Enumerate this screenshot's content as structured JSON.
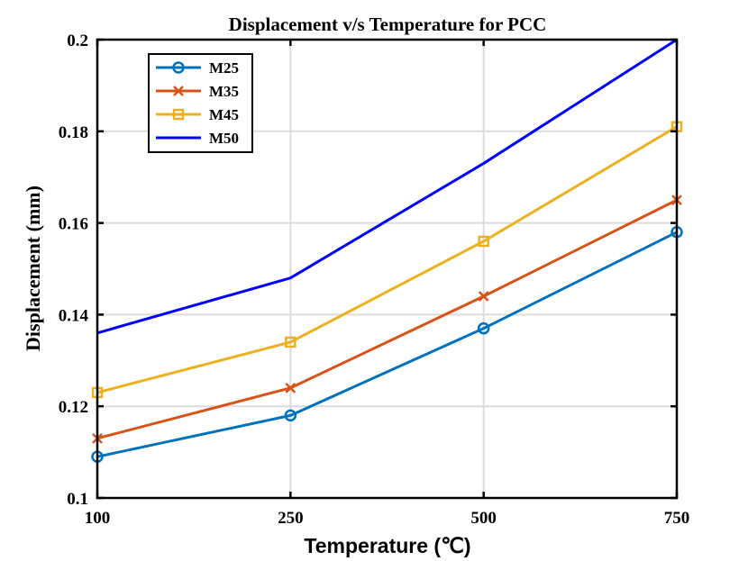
{
  "chart_data": {
    "type": "line",
    "title": "Displacement v/s Temperature for PCC",
    "xlabel": "Temperature (℃)",
    "ylabel": "Displacement (mm)",
    "categories": [
      "100",
      "250",
      "500",
      "750"
    ],
    "ylim": [
      0.1,
      0.2
    ],
    "yticks": [
      "0.1",
      "0.12",
      "0.14",
      "0.16",
      "0.18",
      "0.2"
    ],
    "grid": true,
    "legend_position": "top-left",
    "series": [
      {
        "name": "M25",
        "color": "#0072BD",
        "marker": "circle",
        "values": [
          0.109,
          0.118,
          0.137,
          0.158
        ]
      },
      {
        "name": "M35",
        "color": "#D95319",
        "marker": "x",
        "values": [
          0.113,
          0.124,
          0.144,
          0.165
        ]
      },
      {
        "name": "M45",
        "color": "#EDB120",
        "marker": "square",
        "values": [
          0.123,
          0.134,
          0.156,
          0.181
        ]
      },
      {
        "name": "M50",
        "color": "#0000FF",
        "marker": "none",
        "values": [
          0.136,
          0.148,
          0.173,
          0.2
        ]
      }
    ]
  }
}
